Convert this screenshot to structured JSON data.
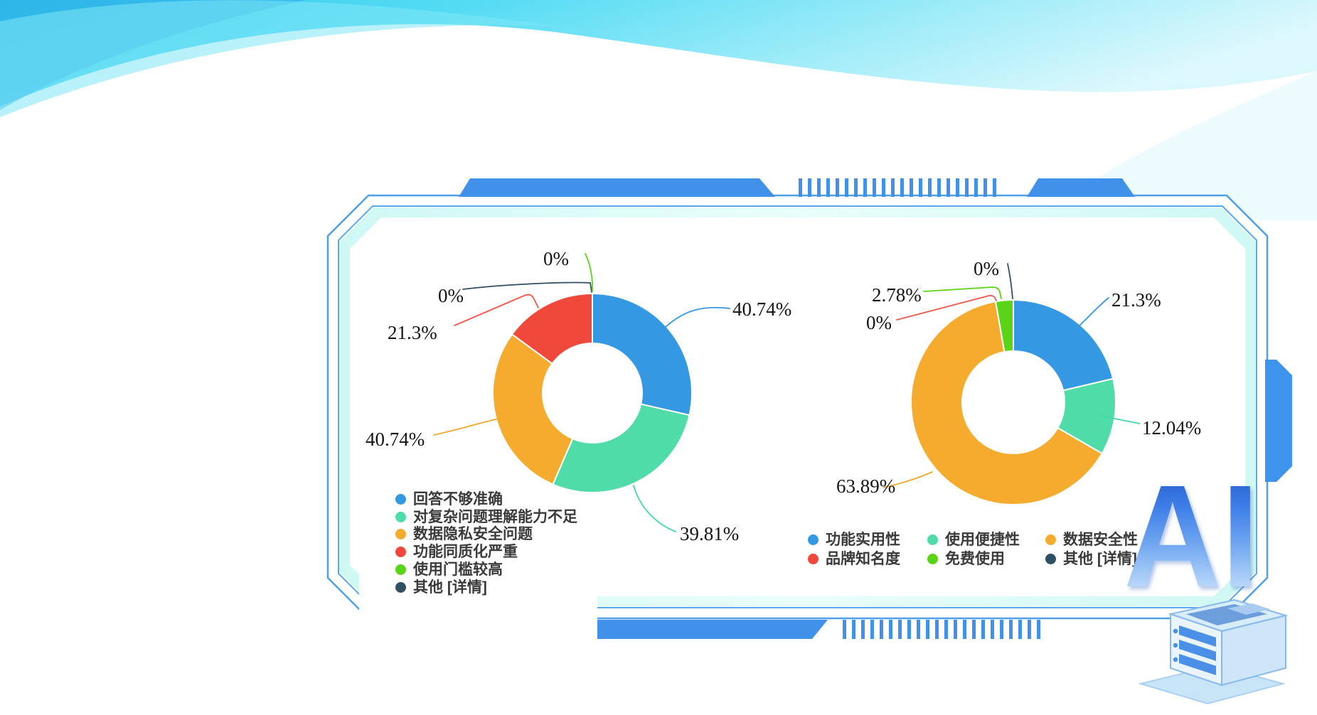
{
  "colors": {
    "frame_line": "#4D9FE8",
    "frame_inner_line": "#57A9EF",
    "frame_band": "#D3F8F4",
    "deco_bar": "#4190EA",
    "wave_cyan": "#3ED3EE",
    "slice_blue": "#3498E3",
    "slice_teal": "#4FDCA8",
    "slice_orange": "#F5AC2E",
    "slice_red": "#F0493C",
    "slice_green": "#5BD316",
    "slice_navy": "#2F4F63"
  },
  "chart_data": [
    {
      "type": "pie",
      "subtype": "donut",
      "title": "",
      "categories": [
        "回答不够准确",
        "对复杂问题理解能力不足",
        "数据隐私安全问题",
        "功能同质化严重",
        "使用门槛较高",
        "其他 [详情]"
      ],
      "values": [
        40.74,
        39.81,
        40.74,
        21.3,
        0,
        0
      ],
      "labels": [
        "40.74%",
        "39.81%",
        "40.74%",
        "21.3%",
        "0%",
        "0%"
      ],
      "colors": [
        "#3498E3",
        "#4FDCA8",
        "#F5AC2E",
        "#F0493C",
        "#5BD316",
        "#2F4F63"
      ],
      "legend_position": "bottom-left",
      "note": "multi-select survey percentages; slice angles normalized to total 142.59"
    },
    {
      "type": "pie",
      "subtype": "donut",
      "title": "",
      "categories": [
        "功能实用性",
        "使用便捷性",
        "数据安全性",
        "品牌知名度",
        "免费使用",
        "其他 [详情]"
      ],
      "values": [
        21.3,
        12.04,
        63.89,
        0,
        2.78,
        0
      ],
      "labels": [
        "21.3%",
        "12.04%",
        "63.89%",
        "0%",
        "2.78%",
        "0%"
      ],
      "colors": [
        "#3498E3",
        "#4FDCA8",
        "#F5AC2E",
        "#F0493C",
        "#5BD316",
        "#2F4F63"
      ],
      "legend_position": "bottom",
      "note": "slice angles normalized to total 100.01"
    }
  ],
  "ai_logo": {
    "text": "AI"
  }
}
